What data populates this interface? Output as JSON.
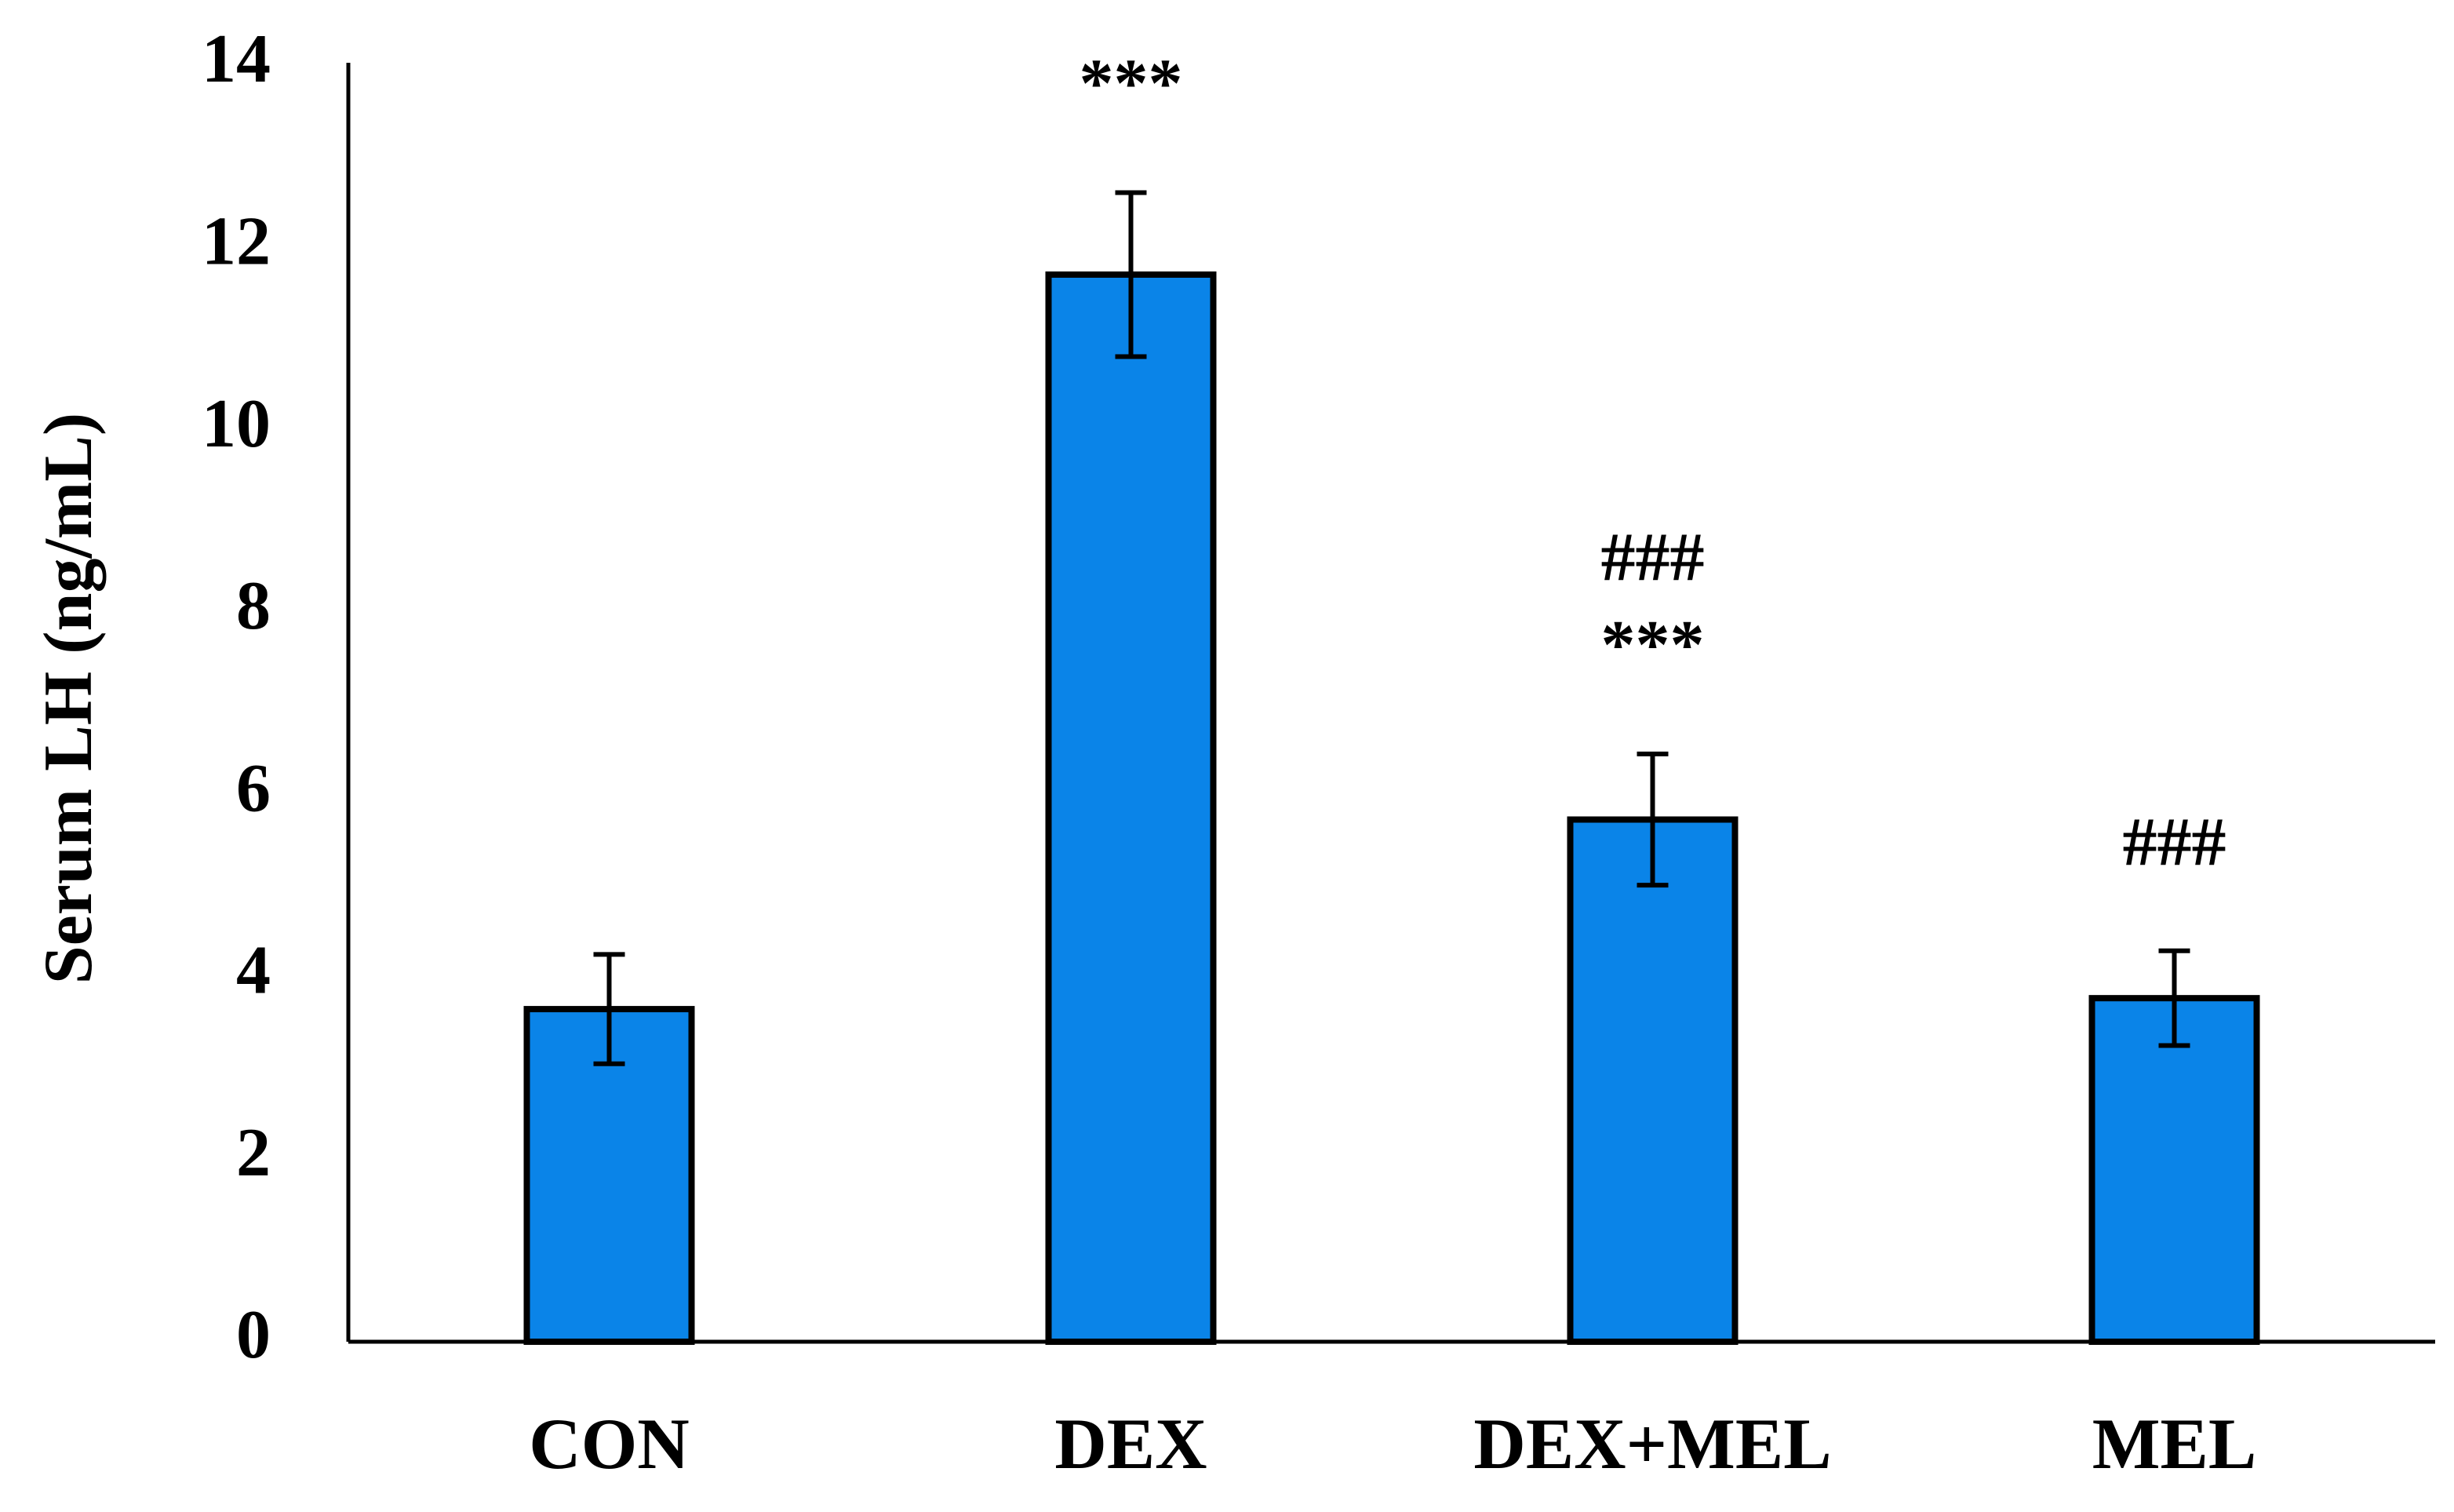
{
  "chart_data": {
    "type": "bar",
    "y_label": "Serum LH (ng/mL)",
    "categories": [
      "CON",
      "DEX",
      "DEX+MEL",
      "MEL"
    ],
    "series": [
      {
        "color": "#0a84e8",
        "values": [
          3.65,
          11.71,
          5.73,
          3.77
        ],
        "errors": [
          0.6,
          0.9,
          0.72,
          0.52
        ]
      }
    ],
    "annotations": [
      [],
      [
        "***"
      ],
      [
        "###",
        "***"
      ],
      [
        "###"
      ]
    ],
    "ylim": [
      0,
      14
    ],
    "yticks": [
      0,
      2,
      4,
      6,
      8,
      10,
      12,
      14
    ],
    "grid": false
  }
}
